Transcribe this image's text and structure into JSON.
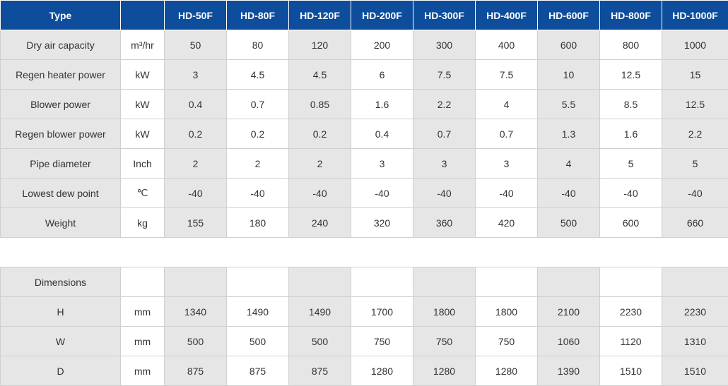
{
  "table": {
    "header": {
      "label": "Type",
      "unit": "",
      "models": [
        "HD-50F",
        "HD-80F",
        "HD-120F",
        "HD-200F",
        "HD-300F",
        "HD-400F",
        "HD-600F",
        "HD-800F",
        "HD-1000F"
      ]
    },
    "rows": [
      {
        "label": "Dry air capacity",
        "unit": "m³/hr",
        "values": [
          "50",
          "80",
          "120",
          "200",
          "300",
          "400",
          "600",
          "800",
          "1000"
        ]
      },
      {
        "label": "Regen heater power",
        "unit": "kW",
        "values": [
          "3",
          "4.5",
          "4.5",
          "6",
          "7.5",
          "7.5",
          "10",
          "12.5",
          "15"
        ]
      },
      {
        "label": "Blower power",
        "unit": "kW",
        "values": [
          "0.4",
          "0.7",
          "0.85",
          "1.6",
          "2.2",
          "4",
          "5.5",
          "8.5",
          "12.5"
        ]
      },
      {
        "label": "Regen blower power",
        "unit": "kW",
        "values": [
          "0.2",
          "0.2",
          "0.2",
          "0.4",
          "0.7",
          "0.7",
          "1.3",
          "1.6",
          "2.2"
        ]
      },
      {
        "label": "Pipe diameter",
        "unit": "Inch",
        "values": [
          "2",
          "2",
          "2",
          "3",
          "3",
          "3",
          "4",
          "5",
          "5"
        ]
      },
      {
        "label": "Lowest dew point",
        "unit": "℃",
        "values": [
          "-40",
          "-40",
          "-40",
          "-40",
          "-40",
          "-40",
          "-40",
          "-40",
          "-40"
        ]
      },
      {
        "label": "Weight",
        "unit": "kg",
        "values": [
          "155",
          "180",
          "240",
          "320",
          "360",
          "420",
          "500",
          "600",
          "660"
        ]
      }
    ],
    "dimensions": {
      "label": "Dimensions",
      "rows": [
        {
          "label": "H",
          "unit": "mm",
          "values": [
            "1340",
            "1490",
            "1490",
            "1700",
            "1800",
            "1800",
            "2100",
            "2230",
            "2230"
          ]
        },
        {
          "label": "W",
          "unit": "mm",
          "values": [
            "500",
            "500",
            "500",
            "750",
            "750",
            "750",
            "1060",
            "1120",
            "1310"
          ]
        },
        {
          "label": "D",
          "unit": "mm",
          "values": [
            "875",
            "875",
            "875",
            "1280",
            "1280",
            "1280",
            "1390",
            "1510",
            "1510"
          ]
        }
      ]
    }
  },
  "colors": {
    "header_bg": "#0d4d9b",
    "header_text": "#ffffff",
    "grey_cell": "#e6e6e6",
    "white_cell": "#ffffff",
    "border": "#cfcfcf"
  }
}
